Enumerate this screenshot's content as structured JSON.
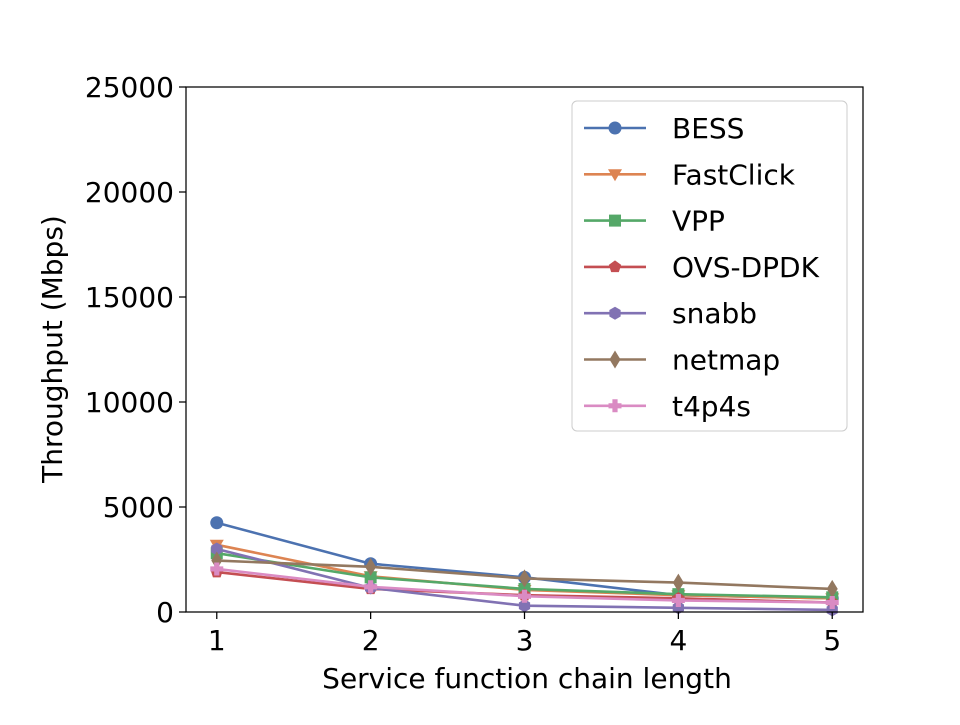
{
  "chart_data": {
    "type": "line",
    "title": "",
    "xlabel": "Service function chain length",
    "ylabel": "Throughput (Mbps)",
    "x": [
      1,
      2,
      3,
      4,
      5
    ],
    "xlim": [
      0.8,
      5.2
    ],
    "ylim": [
      0,
      25000
    ],
    "yticks": [
      0,
      5000,
      10000,
      15000,
      20000,
      25000
    ],
    "xticks": [
      1,
      2,
      3,
      4,
      5
    ],
    "grid": false,
    "legend_position": "top-right",
    "series": [
      {
        "name": "BESS",
        "marker": "circle",
        "color": "#4c72b0",
        "values": [
          4250,
          2300,
          1650,
          800,
          650
        ]
      },
      {
        "name": "FastClick",
        "marker": "triangle-down",
        "color": "#dd8452",
        "values": [
          3200,
          1700,
          1050,
          800,
          650
        ]
      },
      {
        "name": "VPP",
        "marker": "square",
        "color": "#55a868",
        "values": [
          2800,
          1650,
          1100,
          850,
          700
        ]
      },
      {
        "name": "OVS-DPDK",
        "marker": "pentagon",
        "color": "#c44e52",
        "values": [
          1900,
          1100,
          800,
          650,
          450
        ]
      },
      {
        "name": "snabb",
        "marker": "hexagon",
        "color": "#8172b3",
        "values": [
          3000,
          1150,
          300,
          200,
          100
        ]
      },
      {
        "name": "netmap",
        "marker": "diamond",
        "color": "#937860",
        "values": [
          2450,
          2150,
          1600,
          1400,
          1100
        ]
      },
      {
        "name": "t4p4s",
        "marker": "plus",
        "color": "#da8bc3",
        "values": [
          2050,
          1200,
          750,
          550,
          450
        ]
      }
    ]
  }
}
